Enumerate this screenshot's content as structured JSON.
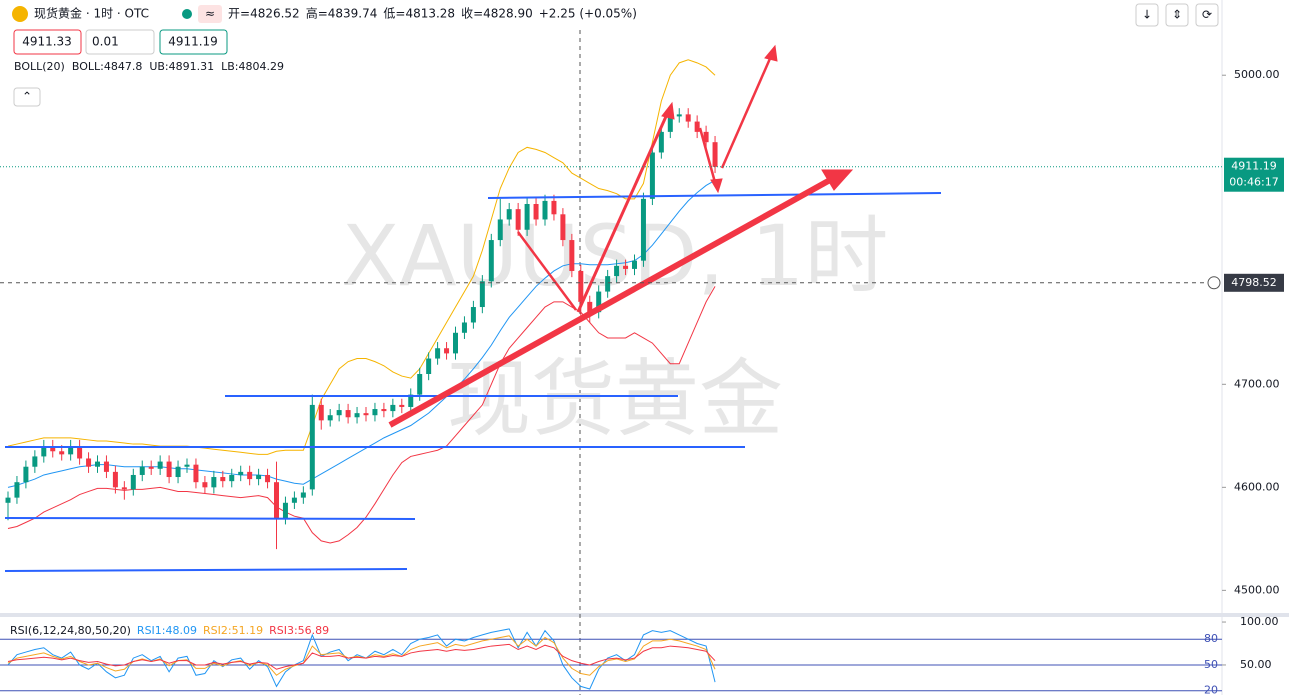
{
  "header": {
    "symbol": "现货黄金 · 1时 · OTC",
    "stats": [
      {
        "label": "开=",
        "value": 4826.52
      },
      {
        "label": "高=",
        "value": 4839.74
      },
      {
        "label": "低=",
        "value": 4813.28
      },
      {
        "label": "收=",
        "value": 4828.9,
        "value_label": "4828.90"
      }
    ],
    "change": "+2.25 (+0.05%)",
    "sell": "4911.33",
    "qty": "0.01",
    "buy": "4911.19",
    "boll": [
      "BOLL(20)",
      "BOLL:4847.8",
      "UB:4891.31",
      "LB:4804.29"
    ]
  },
  "chart_data": [
    {
      "type": "candlestick",
      "watermark": [
        "XAUUSD, 1时",
        "现货黄金"
      ],
      "open": [
        4585,
        4590,
        4605,
        4620,
        4630,
        4640,
        4635,
        4632,
        4640,
        4628,
        4620,
        4625,
        4615,
        4600,
        4598,
        4612,
        4620,
        4618,
        4625,
        4610,
        4620,
        4622,
        4605,
        4600,
        4610,
        4606,
        4612,
        4615,
        4608,
        4612,
        4605,
        4570,
        4585,
        4590,
        4598,
        4680,
        4665,
        4670,
        4675,
        4668,
        4672,
        4670,
        4676,
        4674,
        4680,
        4678,
        4690,
        4710,
        4725,
        4735,
        4730,
        4750,
        4760,
        4775,
        4800,
        4840,
        4860,
        4870,
        4850,
        4875,
        4860,
        4878,
        4865,
        4840,
        4810,
        4780,
        4770,
        4790,
        4805,
        4815,
        4812,
        4820,
        4880,
        4925,
        4945,
        4960,
        4962,
        4955,
        4945,
        4935
      ],
      "high": [
        4596,
        4611,
        4626,
        4636,
        4646,
        4646,
        4641,
        4646,
        4646,
        4634,
        4631,
        4631,
        4621,
        4606,
        4618,
        4626,
        4626,
        4631,
        4631,
        4626,
        4628,
        4628,
        4611,
        4616,
        4616,
        4618,
        4621,
        4621,
        4618,
        4618,
        4625,
        4591,
        4596,
        4601,
        4690,
        4686,
        4676,
        4681,
        4681,
        4678,
        4678,
        4682,
        4682,
        4686,
        4686,
        4696,
        4716,
        4731,
        4741,
        4741,
        4756,
        4766,
        4781,
        4806,
        4846,
        4880,
        4876,
        4876,
        4881,
        4881,
        4884,
        4884,
        4871,
        4846,
        4816,
        4786,
        4796,
        4811,
        4821,
        4821,
        4826,
        4886,
        4931,
        4951,
        4966,
        4968,
        4968,
        4961,
        4951,
        4941
      ],
      "low": [
        4568,
        4584,
        4599,
        4614,
        4624,
        4629,
        4626,
        4626,
        4622,
        4614,
        4614,
        4609,
        4594,
        4588,
        4592,
        4606,
        4612,
        4612,
        4604,
        4604,
        4614,
        4599,
        4594,
        4594,
        4600,
        4600,
        4606,
        4602,
        4602,
        4599,
        4540,
        4564,
        4579,
        4584,
        4592,
        4656,
        4659,
        4664,
        4662,
        4662,
        4664,
        4664,
        4668,
        4668,
        4672,
        4672,
        4684,
        4704,
        4719,
        4724,
        4724,
        4744,
        4754,
        4769,
        4794,
        4834,
        4854,
        4844,
        4844,
        4854,
        4854,
        4859,
        4834,
        4804,
        4766,
        4760,
        4764,
        4784,
        4799,
        4806,
        4806,
        4814,
        4874,
        4919,
        4939,
        4954,
        4949,
        4939,
        4929,
        4905
      ],
      "close": [
        4590,
        4605,
        4620,
        4630,
        4640,
        4635,
        4632,
        4640,
        4628,
        4620,
        4625,
        4615,
        4600,
        4598,
        4612,
        4620,
        4618,
        4625,
        4610,
        4620,
        4622,
        4605,
        4600,
        4610,
        4606,
        4612,
        4615,
        4608,
        4612,
        4605,
        4570,
        4585,
        4590,
        4595,
        4680,
        4665,
        4670,
        4675,
        4668,
        4672,
        4670,
        4676,
        4674,
        4680,
        4678,
        4690,
        4710,
        4725,
        4735,
        4730,
        4750,
        4760,
        4775,
        4800,
        4840,
        4860,
        4870,
        4850,
        4875,
        4860,
        4878,
        4865,
        4840,
        4810,
        4780,
        4770,
        4790,
        4805,
        4815,
        4812,
        4820,
        4880,
        4925,
        4945,
        4960,
        4962,
        4955,
        4945,
        4935,
        4911
      ],
      "up_color": "#089981",
      "down_color": "#f23645",
      "bands": {
        "upper": [
          4640,
          4642,
          4644,
          4646,
          4648,
          4648,
          4648,
          4648,
          4647,
          4646,
          4645,
          4645,
          4644,
          4643,
          4642,
          4642,
          4641,
          4640,
          4640,
          4640,
          4640,
          4639,
          4638,
          4637,
          4636,
          4635,
          4634,
          4633,
          4632,
          4632,
          4635,
          4636,
          4636,
          4636,
          4660,
          4685,
          4700,
          4715,
          4722,
          4725,
          4725,
          4722,
          4718,
          4712,
          4708,
          4706,
          4715,
          4730,
          4745,
          4760,
          4775,
          4790,
          4805,
          4830,
          4860,
          4890,
          4910,
          4925,
          4930,
          4928,
          4925,
          4920,
          4915,
          4905,
          4900,
          4895,
          4890,
          4888,
          4885,
          4880,
          4880,
          4895,
          4935,
          4975,
          5000,
          5012,
          5015,
          5012,
          5008,
          5000
        ],
        "middle": [
          4600,
          4602,
          4605,
          4608,
          4612,
          4614,
          4616,
          4618,
          4620,
          4621,
          4622,
          4622,
          4621,
          4620,
          4620,
          4620,
          4620,
          4620,
          4619,
          4618,
          4618,
          4617,
          4616,
          4615,
          4614,
          4613,
          4612,
          4612,
          4612,
          4611,
          4608,
          4606,
          4604,
          4603,
          4608,
          4613,
          4618,
          4623,
          4628,
          4633,
          4638,
          4643,
          4648,
          4652,
          4656,
          4660,
          4666,
          4672,
          4680,
          4688,
          4696,
          4705,
          4715,
          4726,
          4738,
          4752,
          4765,
          4775,
          4785,
          4795,
          4803,
          4810,
          4815,
          4817,
          4817,
          4816,
          4816,
          4816,
          4817,
          4818,
          4820,
          4826,
          4835,
          4846,
          4857,
          4868,
          4878,
          4886,
          4893,
          4898
        ],
        "lower": [
          4560,
          4562,
          4566,
          4570,
          4576,
          4580,
          4584,
          4588,
          4593,
          4596,
          4599,
          4599,
          4598,
          4597,
          4598,
          4598,
          4599,
          4600,
          4598,
          4596,
          4596,
          4595,
          4594,
          4593,
          4592,
          4591,
          4590,
          4591,
          4592,
          4590,
          4581,
          4576,
          4572,
          4570,
          4556,
          4548,
          4546,
          4548,
          4554,
          4561,
          4571,
          4584,
          4598,
          4612,
          4624,
          4630,
          4632,
          4634,
          4636,
          4640,
          4650,
          4660,
          4670,
          4680,
          4700,
          4720,
          4735,
          4745,
          4755,
          4765,
          4775,
          4780,
          4780,
          4775,
          4770,
          4760,
          4750,
          4745,
          4745,
          4745,
          4750,
          4745,
          4740,
          4730,
          4720,
          4720,
          4740,
          4760,
          4780,
          4795
        ],
        "colors": [
          "#f5b400",
          "#2196f3",
          "#f23645"
        ]
      },
      "ylim": [
        4479,
        5073
      ],
      "yticks": [
        {
          "value": 5000,
          "label": "5000.00"
        },
        {
          "value": 4700,
          "label": "4700.00"
        },
        {
          "value": 4600,
          "label": "4600.00"
        },
        {
          "value": 4500,
          "label": "4500.00"
        }
      ],
      "last_price": 4911.19,
      "countdown": "00:46:17",
      "crosshair_price": 4798.52
    },
    {
      "type": "line",
      "title": "RSI(6,12,24,80,50,20)",
      "ylim": [
        15,
        104.7
      ],
      "yticks": [
        {
          "value": 100,
          "label": "100.00"
        },
        {
          "value": 50,
          "label": "50.00"
        }
      ],
      "levels": [
        80,
        50,
        20
      ],
      "series": [
        {
          "name": "RSI1:48.09",
          "color": "#2196f3",
          "values": [
            50,
            62,
            65,
            68,
            70,
            62,
            58,
            65,
            50,
            45,
            52,
            42,
            35,
            38,
            58,
            62,
            55,
            60,
            42,
            58,
            60,
            38,
            40,
            55,
            48,
            56,
            58,
            45,
            55,
            48,
            25,
            42,
            50,
            55,
            85,
            60,
            65,
            68,
            55,
            62,
            58,
            66,
            62,
            68,
            62,
            75,
            80,
            82,
            85,
            72,
            80,
            78,
            82,
            85,
            88,
            90,
            92,
            70,
            88,
            72,
            90,
            78,
            50,
            35,
            25,
            22,
            45,
            58,
            62,
            55,
            62,
            85,
            90,
            88,
            90,
            85,
            80,
            75,
            72,
            30
          ]
        },
        {
          "name": "RSI2:51.19",
          "color": "#f5a623",
          "values": [
            52,
            58,
            60,
            62,
            64,
            60,
            57,
            60,
            54,
            50,
            52,
            47,
            43,
            45,
            54,
            57,
            54,
            57,
            49,
            55,
            56,
            46,
            46,
            52,
            49,
            53,
            55,
            49,
            53,
            50,
            38,
            45,
            49,
            52,
            72,
            62,
            63,
            64,
            58,
            60,
            58,
            62,
            60,
            63,
            60,
            68,
            72,
            74,
            76,
            70,
            74,
            72,
            75,
            78,
            80,
            82,
            84,
            72,
            80,
            72,
            82,
            76,
            58,
            46,
            40,
            38,
            48,
            55,
            57,
            54,
            57,
            72,
            78,
            78,
            80,
            78,
            75,
            72,
            68,
            45
          ]
        },
        {
          "name": "RSI3:56.89",
          "color": "#f23645",
          "values": [
            54,
            56,
            57,
            58,
            59,
            58,
            56,
            58,
            55,
            53,
            54,
            51,
            49,
            50,
            54,
            56,
            54,
            56,
            52,
            55,
            55,
            50,
            50,
            53,
            51,
            53,
            54,
            51,
            53,
            52,
            45,
            48,
            50,
            52,
            64,
            60,
            60,
            61,
            58,
            59,
            58,
            60,
            59,
            61,
            60,
            64,
            66,
            67,
            68,
            66,
            68,
            67,
            68,
            70,
            72,
            73,
            74,
            68,
            72,
            68,
            73,
            70,
            60,
            55,
            52,
            50,
            54,
            57,
            58,
            56,
            58,
            66,
            70,
            70,
            72,
            71,
            70,
            68,
            66,
            55
          ]
        }
      ]
    }
  ]
}
